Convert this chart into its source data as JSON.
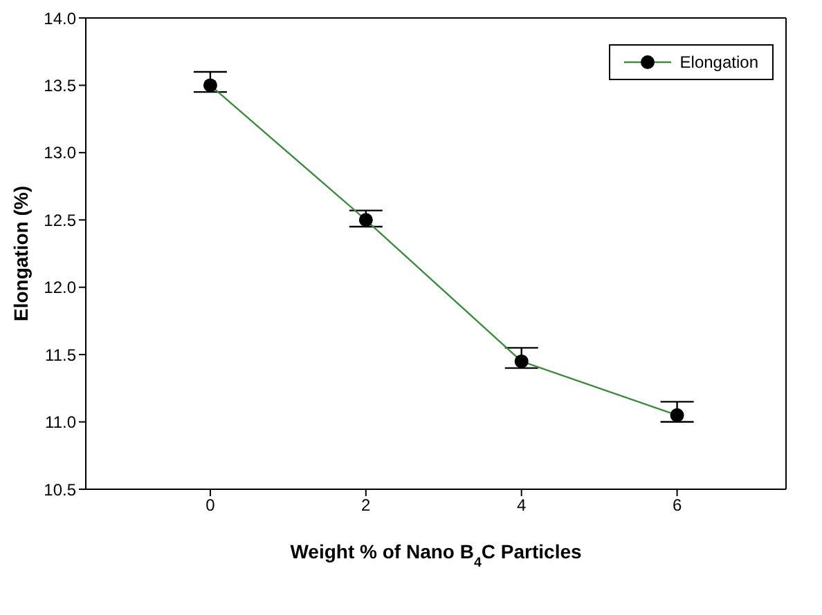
{
  "chart_data": {
    "type": "line",
    "xlabel": "Weight % of Nano B$_{4}$C Particles",
    "ylabel": "Elongation (%)",
    "x": [
      0,
      2,
      4,
      6
    ],
    "series": [
      {
        "name": "Elongation",
        "color": "#3c8c3c",
        "values": [
          13.5,
          12.5,
          11.45,
          11.05
        ],
        "errors": [
          [
            13.45,
            13.6
          ],
          [
            12.45,
            12.57
          ],
          [
            11.4,
            11.55
          ],
          [
            11.0,
            11.15
          ]
        ]
      }
    ],
    "xlim": [
      -1.6,
      7.4
    ],
    "xticks": [
      0,
      2,
      4,
      6
    ],
    "ylim": [
      10.5,
      14.0
    ],
    "yticks": [
      {
        "value": 10.5,
        "label": "10.5"
      },
      {
        "value": 11,
        "label": "11.0"
      },
      {
        "value": 11.5,
        "label": "11.5"
      },
      {
        "value": 12,
        "label": "12.0"
      },
      {
        "value": 12.5,
        "label": "12.5"
      },
      {
        "value": 13,
        "label": "13.0"
      },
      {
        "value": 13.5,
        "label": "13.5"
      },
      {
        "value": 14,
        "label": "14.0"
      }
    ],
    "grid": false,
    "legend": "top right",
    "marker": "circle",
    "line_style": "solid"
  }
}
